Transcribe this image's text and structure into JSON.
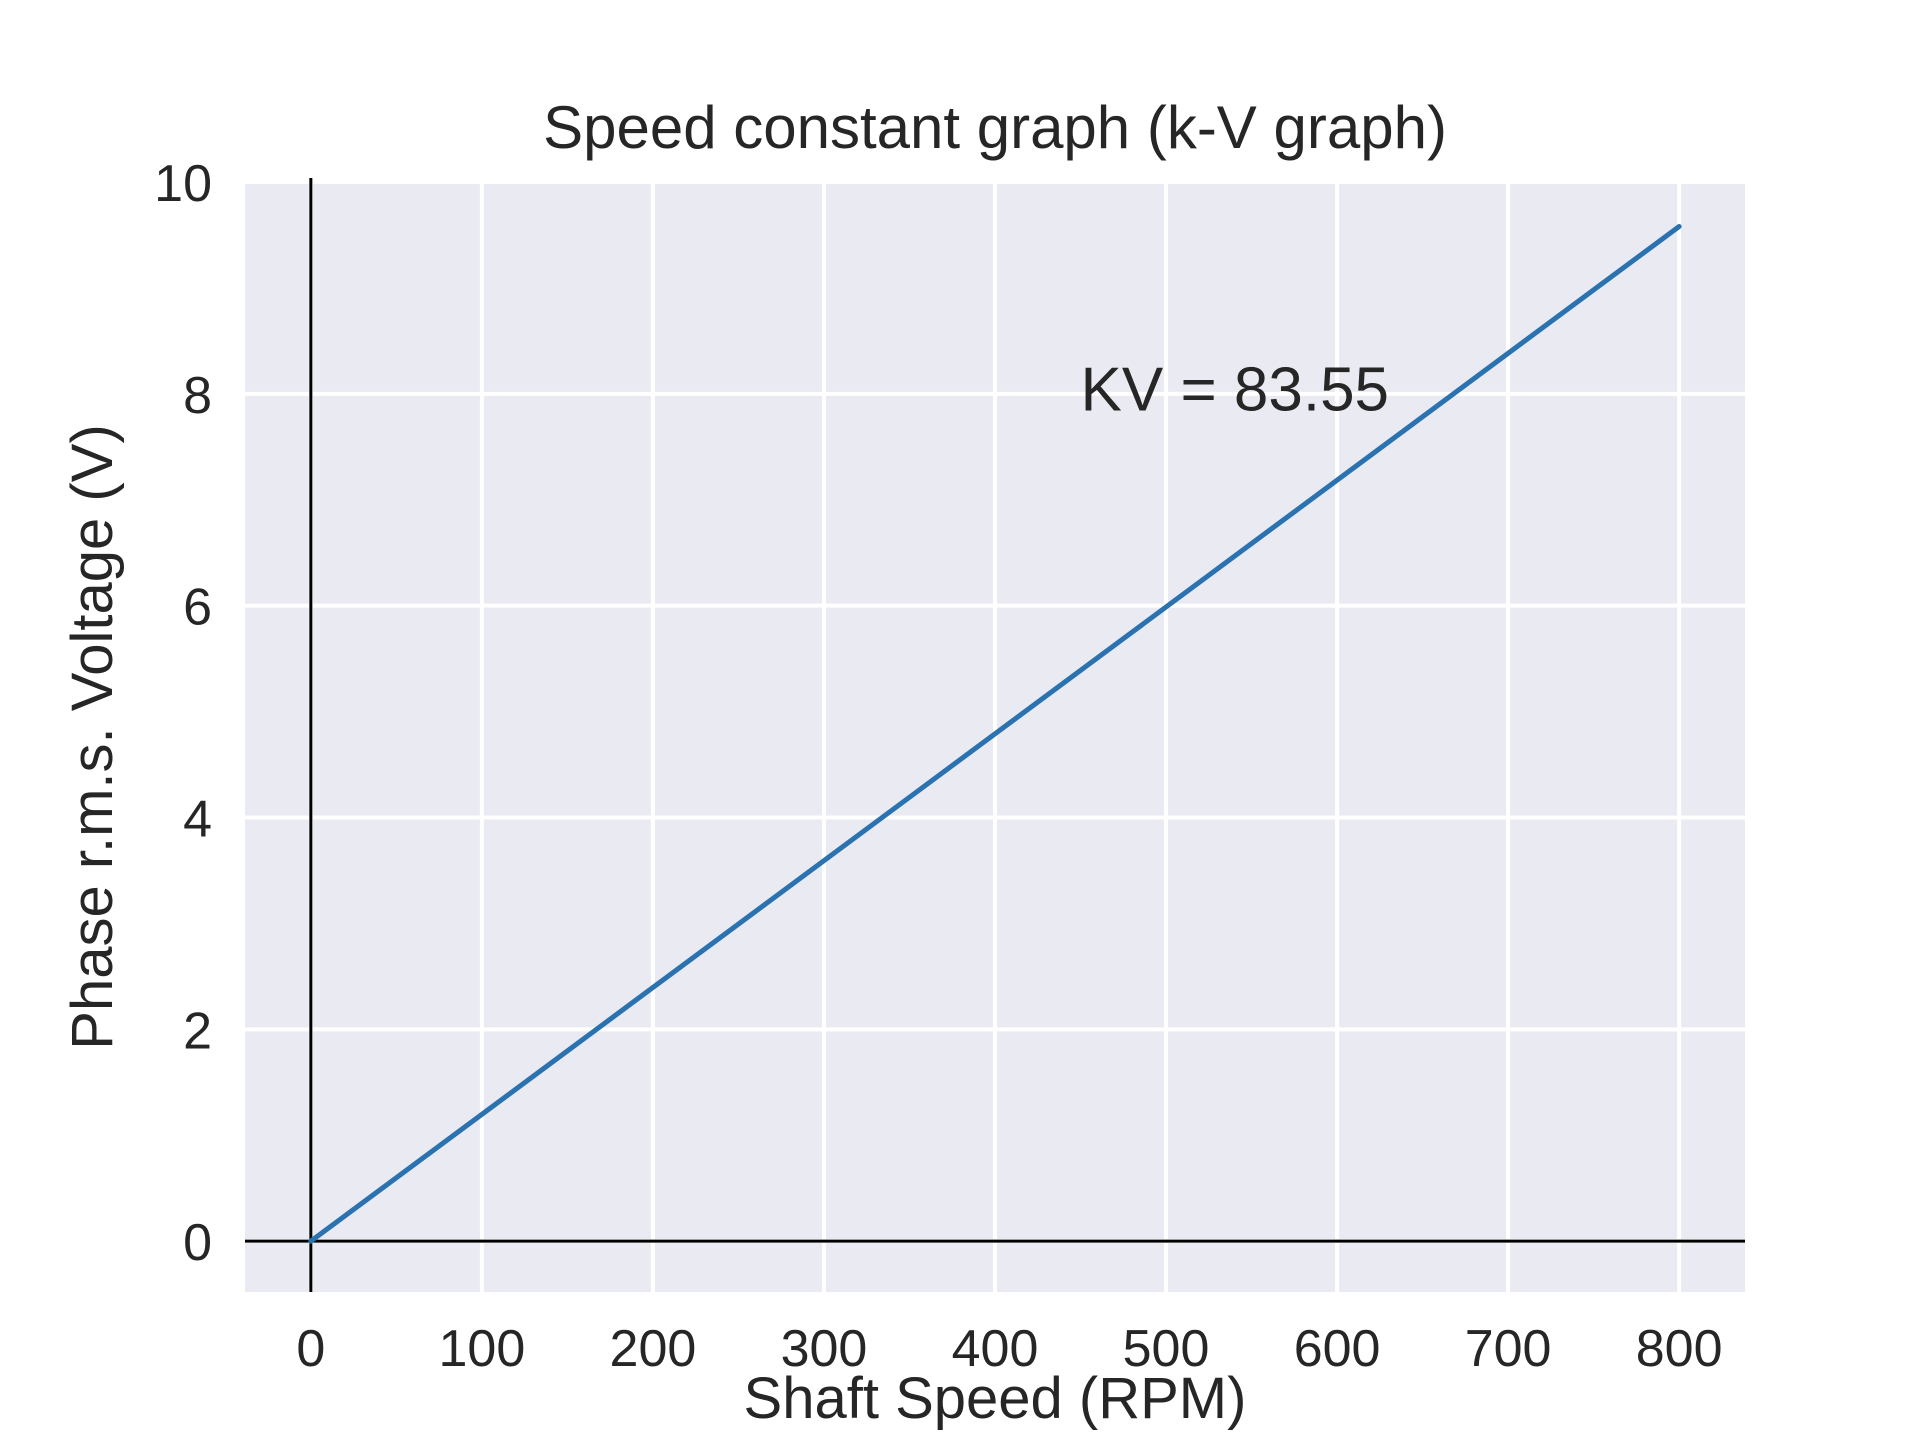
{
  "chart_data": {
    "type": "line",
    "title": "Speed constant graph (k-V graph)",
    "xlabel": "Shaft Speed (RPM)",
    "ylabel": "Phase r.m.s. Voltage (V)",
    "xlim": [
      -38.5,
      838.5
    ],
    "ylim": [
      -0.48,
      10
    ],
    "x_ticks": [
      0,
      100,
      200,
      300,
      400,
      500,
      600,
      700,
      800
    ],
    "y_ticks": [
      0,
      2,
      4,
      6,
      8,
      10
    ],
    "grid": true,
    "zero_lines": true,
    "series": [
      {
        "color": "#2a73b0",
        "x": [
          0,
          800
        ],
        "y": [
          0,
          9.58
        ]
      }
    ],
    "annotations": [
      {
        "text": "KV = 83.55",
        "x": 450,
        "y": 8.05
      }
    ],
    "colors": {
      "background": "#eaeaf2",
      "grid": "#ffffff",
      "zero_line": "#000000",
      "text": "#262626"
    }
  }
}
